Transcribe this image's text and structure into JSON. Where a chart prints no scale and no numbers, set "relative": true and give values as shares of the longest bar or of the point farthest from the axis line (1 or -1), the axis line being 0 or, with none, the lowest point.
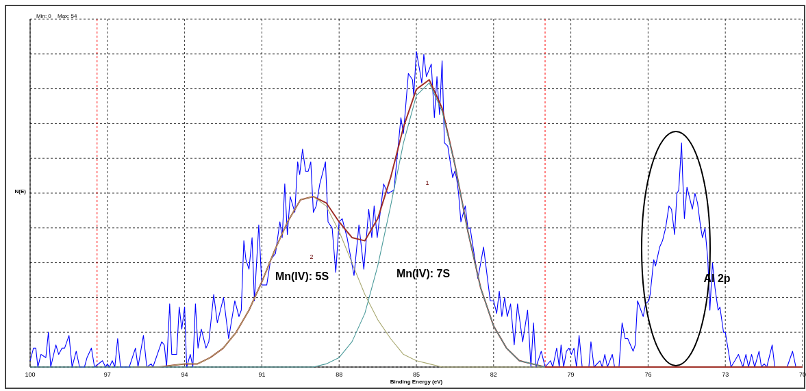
{
  "chart_data": {
    "type": "line",
    "xlabel": "Binding Energy (eV)",
    "ylabel": "N(E)",
    "xlim": [
      100,
      70
    ],
    "xticks": [
      100,
      97,
      94,
      91,
      88,
      85,
      82,
      79,
      76,
      73,
      70
    ],
    "relative": true,
    "tick_labels": "x",
    "grid": true,
    "marker": "none",
    "line_style": "solid",
    "series": [
      {
        "color": "#0000ff",
        "x": [
          100,
          99.87,
          99.78,
          99.7,
          99.58,
          99.39,
          99.29,
          99.2,
          99,
          98.89,
          98.76,
          98.66,
          98.49,
          98.37,
          98.21,
          98.08,
          97.89,
          97.79,
          97.62,
          97.5,
          97.19,
          97.07,
          97,
          96.92,
          96.81,
          96.71,
          96.6,
          96.49,
          96.15,
          95.91,
          95.81,
          95.6,
          95.47,
          95.3,
          95.23,
          94.89,
          94.79,
          94.7,
          94.58,
          94.5,
          94.31,
          94.21,
          94.11,
          94,
          93.92,
          93.78,
          93.68,
          93.58,
          93.48,
          93.35,
          93.17,
          93.06,
          92.87,
          92.73,
          92.49,
          92.29,
          92.05,
          91.89,
          91.8,
          91.7,
          91.62,
          91.5,
          91.38,
          91.29,
          91.12,
          91,
          90.81,
          90.66,
          90.47,
          90.3,
          90.21,
          90.11,
          90.01,
          89.9,
          89.72,
          89.61,
          89.53,
          89.42,
          89.3,
          89.2,
          89.1,
          89,
          88.89,
          88.75,
          88.53,
          88.43,
          88.27,
          88.13,
          88,
          87.88,
          87.69,
          87.42,
          87.23,
          87.04,
          86.85,
          86.73,
          86.64,
          86.52,
          86.27,
          86.11,
          85.87,
          85.6,
          85.5,
          85.31,
          85.15,
          85.1,
          85,
          84.85,
          84.79,
          84.71,
          84.61,
          84.42,
          84.3,
          84.2,
          84.1,
          84,
          83.91,
          83.78,
          83.59,
          83.51,
          83.44,
          83.36,
          83.27,
          83.1,
          83,
          82.91,
          82.61,
          82.39,
          82.13,
          82,
          81.88,
          81.78,
          81.68,
          81.57,
          81.47,
          81.34,
          81.2,
          81.07,
          80.87,
          80.68,
          80.55,
          80.45,
          80.35,
          80.15,
          80,
          79.79,
          79.7,
          79.55,
          79.45,
          79.38,
          79.28,
          79.17,
          79.07,
          78.98,
          78.88,
          78.78,
          78.68,
          78.56,
          78.3,
          78.22,
          78.1,
          77.87,
          77.78,
          77.68,
          77.58,
          77.39,
          77.3,
          77.13,
          77.01,
          76.89,
          76.79,
          76.58,
          76.5,
          76.41,
          76.19,
          76.1,
          75.97,
          75.92,
          75.78,
          75.71,
          75.55,
          75.44,
          75.32,
          75.19,
          75.09,
          74.97,
          74.88,
          74.81,
          74.7,
          74.66,
          74.59,
          74.49,
          74.28,
          74.18,
          74.08,
          73.97,
          73.89,
          73.79,
          73.68,
          73.6,
          73.5,
          73.4,
          73.28,
          73.21,
          73.07,
          73,
          72.78,
          72.63,
          72.49,
          72.32,
          72.2,
          72.1,
          71.98,
          71.86,
          71.69,
          71.6,
          71.49,
          71.39,
          71.18,
          71.08,
          70.6,
          70.39,
          70.26,
          70.02
        ],
        "values": [
          0.02,
          0.06,
          0.06,
          0,
          0.04,
          0.03,
          0.11,
          0,
          0.07,
          0.04,
          0.06,
          0.06,
          0.1,
          0,
          0.05,
          0,
          0,
          0.03,
          0.06,
          0,
          0.02,
          0,
          0.01,
          0,
          0.02,
          0,
          0.09,
          0,
          0,
          0.06,
          0,
          0.1,
          0,
          0.01,
          0,
          0.08,
          0.07,
          0,
          0.2,
          0.04,
          0.04,
          0.19,
          0.12,
          0.19,
          0,
          0.04,
          0,
          0.2,
          0.06,
          0.12,
          0.06,
          0.08,
          0.23,
          0.14,
          0.22,
          0.09,
          0.21,
          0.16,
          0.18,
          0.4,
          0.34,
          0.31,
          0.41,
          0.21,
          0.45,
          0.26,
          0.26,
          0.34,
          0.36,
          0.46,
          0.41,
          0.58,
          0.42,
          0.54,
          0.49,
          0.65,
          0.61,
          0.69,
          0.62,
          0.62,
          0.65,
          0.49,
          0.51,
          0.58,
          0.65,
          0.46,
          0.44,
          0.3,
          0.46,
          0.47,
          0.41,
          0.29,
          0.45,
          0.31,
          0.5,
          0.41,
          0.51,
          0.41,
          0.58,
          0.55,
          0.56,
          0.79,
          0.74,
          0.93,
          0.91,
          0.86,
          1,
          0.93,
          0.9,
          0.99,
          0.92,
          0.96,
          0.79,
          0.92,
          0.8,
          0.97,
          0.71,
          0.7,
          0.6,
          0.62,
          0.6,
          0.55,
          0.46,
          0.51,
          0.44,
          0.44,
          0.28,
          0.38,
          0.21,
          0.21,
          0.17,
          0.24,
          0.16,
          0.22,
          0.16,
          0.2,
          0.07,
          0.2,
          0.08,
          0.18,
          0,
          0.14,
          0,
          0.05,
          0,
          0.02,
          0,
          0.06,
          0,
          0.07,
          0,
          0.05,
          0.06,
          0.04,
          0.06,
          0,
          0.1,
          0,
          0,
          0.08,
          0,
          0.02,
          0,
          0.04,
          0,
          0.04,
          0,
          0,
          0.14,
          0.09,
          0.09,
          0.05,
          0.07,
          0.21,
          0.16,
          0.2,
          0.21,
          0.23,
          0.34,
          0.32,
          0.38,
          0.4,
          0.44,
          0.51,
          0.5,
          0.42,
          0.55,
          0.56,
          0.71,
          0.61,
          0.47,
          0.57,
          0.5,
          0.55,
          0.52,
          0.45,
          0.41,
          0.44,
          0.34,
          0.18,
          0.33,
          0.25,
          0.18,
          0.19,
          0.11,
          0.11,
          0,
          0.02,
          0.04,
          0,
          0.04,
          0,
          0.04,
          0,
          0.05,
          0,
          0.01,
          0,
          0.07,
          0,
          0,
          0.05,
          0,
          0
        ]
      },
      {
        "color": "#a03028",
        "x": [
          96,
          95,
          94,
          93.5,
          93,
          92.5,
          92,
          91.5,
          91,
          90.5,
          90,
          89.5,
          89,
          88.5,
          88,
          87.5,
          87,
          86.5,
          86,
          85.5,
          85,
          84.5,
          84,
          83.5,
          83,
          82.5,
          82,
          81.5,
          81,
          80.5,
          80,
          79,
          70
        ],
        "values": [
          0,
          0,
          0.01,
          0.01,
          0.03,
          0.06,
          0.11,
          0.18,
          0.27,
          0.37,
          0.46,
          0.53,
          0.54,
          0.52,
          0.46,
          0.41,
          0.4,
          0.47,
          0.6,
          0.76,
          0.88,
          0.91,
          0.82,
          0.64,
          0.43,
          0.25,
          0.13,
          0.06,
          0.02,
          0.01,
          0,
          0,
          0
        ]
      },
      {
        "color": "#a8a870",
        "x": [
          96,
          95,
          94,
          93.5,
          93,
          92.5,
          92,
          91.5,
          91,
          90.5,
          90,
          89.5,
          89,
          88.5,
          88,
          87.5,
          87,
          86.5,
          86,
          85.5,
          85,
          84.5,
          84,
          83,
          82,
          80
        ],
        "values": [
          0,
          0,
          0.01,
          0.01,
          0.03,
          0.06,
          0.11,
          0.18,
          0.27,
          0.37,
          0.46,
          0.53,
          0.54,
          0.51,
          0.43,
          0.33,
          0.23,
          0.15,
          0.09,
          0.04,
          0.02,
          0.01,
          0,
          0,
          0,
          0
        ]
      },
      {
        "color": "#4a9a9a",
        "x": [
          100,
          90,
          89,
          88.5,
          88,
          87.5,
          87,
          86.5,
          86,
          85.5,
          85,
          84.5,
          84,
          83.5,
          83,
          82.5,
          82,
          81.5,
          81,
          80.5,
          80
        ],
        "values": [
          0,
          0,
          0,
          0.01,
          0.03,
          0.08,
          0.17,
          0.32,
          0.51,
          0.71,
          0.86,
          0.9,
          0.81,
          0.64,
          0.43,
          0.25,
          0.13,
          0.06,
          0.02,
          0.01,
          0
        ]
      }
    ],
    "ref_lines": [
      {
        "axis": "x",
        "value": 97.4,
        "color": "#ff0000",
        "line_style": "dashed"
      },
      {
        "axis": "x",
        "value": 80,
        "color": "#ff0000",
        "line_style": "dashed"
      }
    ],
    "annotations": [
      "Min: 0",
      "Max: 54",
      "Mn(IV): 5S",
      "Mn(IV): 7S",
      "Al 2p",
      "1",
      "2"
    ]
  }
}
